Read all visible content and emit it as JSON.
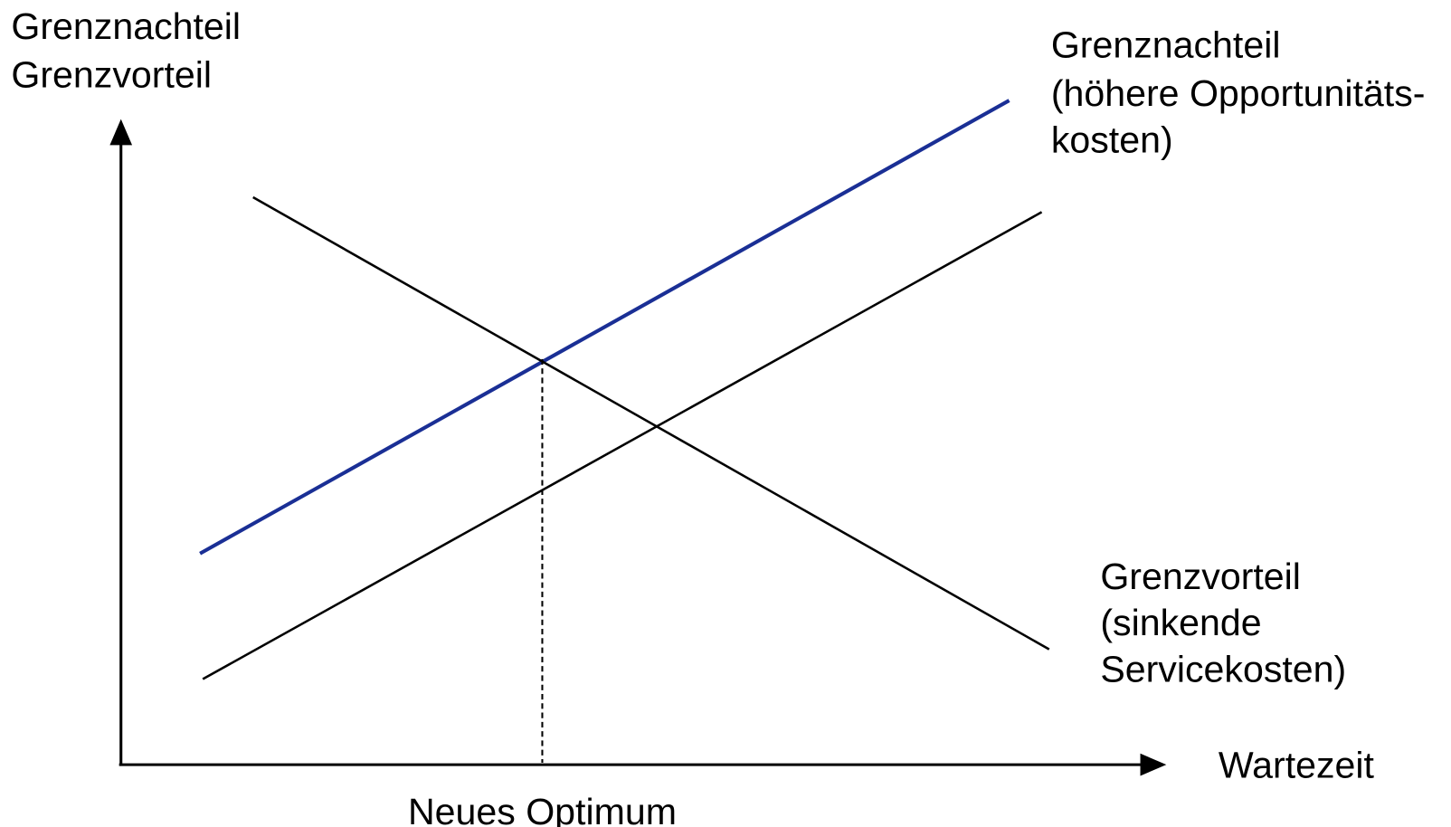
{
  "axes": {
    "y_label": [
      "Grenznachteil",
      "Grenzvorteil"
    ],
    "x_label": "Wartezeit"
  },
  "curves": [
    {
      "label": [
        "Grenznachteil",
        "(höhere Opportunitäts-",
        "kosten)"
      ]
    },
    {
      "label": [
        "Grenzvorteil",
        "(sinkende",
        "Servicekosten)"
      ]
    }
  ],
  "annotation": "Neues Optimum"
}
